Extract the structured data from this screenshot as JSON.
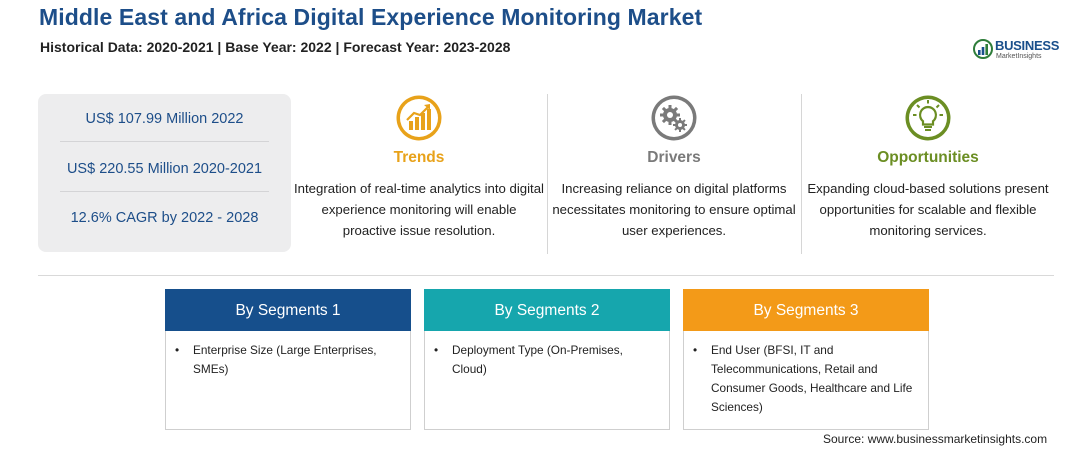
{
  "header": {
    "title": "Middle East and Africa Digital Experience Monitoring Market",
    "subtitle": "Historical Data: 2020-2021 | Base Year: 2022 | Forecast Year: 2023-2028"
  },
  "logo": {
    "name": "BUSINESS",
    "tagline": "MarketInsights",
    "icon": "logo-mark-icon"
  },
  "stats": [
    "US$ 107.99 Million 2022",
    "US$ 220.55 Million 2020-2021",
    "12.6% CAGR by 2022 - 2028"
  ],
  "columns": [
    {
      "heading": "Trends",
      "icon": "growth-chart-icon",
      "color": "#e8a21a",
      "text": "Integration of real-time analytics into digital experience monitoring will enable proactive issue resolution."
    },
    {
      "heading": "Drivers",
      "icon": "gears-icon",
      "color": "#7a7a7a",
      "text": "Increasing reliance on digital platforms necessitates monitoring to ensure optimal user experiences."
    },
    {
      "heading": "Opportunities",
      "icon": "lightbulb-icon",
      "color": "#6b8e23",
      "text": "Expanding cloud-based solutions present opportunities for scalable and flexible monitoring services."
    }
  ],
  "segments": [
    {
      "title": "By Segments 1",
      "color": "#164f8c",
      "items": [
        "Enterprise Size (Large Enterprises, SMEs)"
      ]
    },
    {
      "title": "By Segments 2",
      "color": "#16a6ad",
      "items": [
        "Deployment Type (On-Premises, Cloud)"
      ]
    },
    {
      "title": "By Segments 3",
      "color": "#f39a18",
      "items": [
        "End User (BFSI, IT and Telecommunications, Retail and Consumer Goods, Healthcare and Life Sciences)"
      ]
    }
  ],
  "bullet": "•",
  "source": "Source: www.businessmarketinsights.com"
}
